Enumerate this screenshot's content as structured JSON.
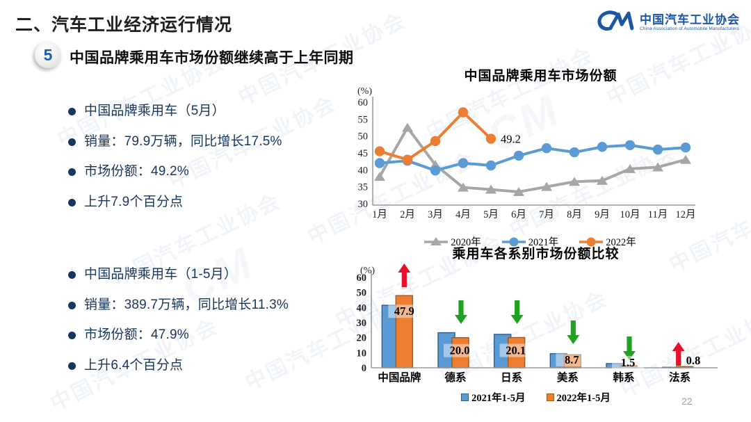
{
  "page": {
    "title": "二、汽车工业经济运行情况",
    "page_number": "22"
  },
  "logo": {
    "mark": "CM",
    "name_cn": "中国汽车工业协会",
    "name_en": "China Association of Automobile Manufacturers"
  },
  "section": {
    "badge": "5",
    "heading": "中国品牌乘用车市场份额继续高于上年同期"
  },
  "bullets": {
    "group1": [
      "中国品牌乘用车（5月）",
      "销量：79.9万辆，同比增长17.5%",
      "市场份额：49.2%",
      "上升7.9个百分点"
    ],
    "group2": [
      "中国品牌乘用车（1-5月）",
      "销量：389.7万辆，同比增长11.3%",
      "市场份额：47.9%",
      "上升6.4个百分点"
    ]
  },
  "watermark": {
    "text": "中国汽车工业协会"
  },
  "colors": {
    "navy_text": "#17365d",
    "blue_series": "#5b9bd5",
    "blue_border": "#2e5f8a",
    "orange_series": "#ed7d31",
    "orange_border": "#9c5a1d",
    "gray_series": "#a6a6a6",
    "up_arrow": "#e8112d",
    "down_arrow": "#1fa21f",
    "logo_blue": "#1c57a5"
  },
  "chart_data": [
    {
      "type": "line",
      "title": "中国品牌乘用车市场份额",
      "unit_label": "(%)",
      "categories": [
        "1月",
        "2月",
        "3月",
        "4月",
        "5月",
        "6月",
        "7月",
        "8月",
        "9月",
        "10月",
        "11月",
        "12月"
      ],
      "ylim": [
        30,
        60
      ],
      "ytick_step": 5,
      "grid": false,
      "legend_position": "bottom",
      "series": [
        {
          "name": "2020年",
          "color": "#a6a6a6",
          "marker": "triangle",
          "values": [
            38.0,
            52.5,
            41.5,
            34.8,
            34.2,
            33.5,
            35.0,
            36.5,
            36.8,
            40.3,
            40.8,
            43.0
          ]
        },
        {
          "name": "2021年",
          "color": "#5b9bd5",
          "marker": "circle",
          "values": [
            42.0,
            42.7,
            39.8,
            42.0,
            41.3,
            44.2,
            46.4,
            45.2,
            46.8,
            47.3,
            46.0,
            46.6
          ]
        },
        {
          "name": "2022年",
          "color": "#ed7d31",
          "marker": "circle",
          "values": [
            45.5,
            43.0,
            48.5,
            57.0,
            49.2
          ]
        }
      ],
      "annotation": {
        "text": "49.2",
        "series_index": 2,
        "point_index": 4
      }
    },
    {
      "type": "bar",
      "title": "乘用车各系别市场份额比较",
      "unit_label": "(%)",
      "categories": [
        "中国品牌",
        "德系",
        "日系",
        "美系",
        "韩系",
        "法系"
      ],
      "ylim": [
        0,
        60
      ],
      "ytick_step": 10,
      "grid": false,
      "legend_position": "bottom",
      "series": [
        {
          "name": "2021年1-5月",
          "color": "#5b9bd5",
          "border": "#2e5f8a",
          "values": [
            41.5,
            23.3,
            22.2,
            9.4,
            2.8,
            0.3
          ]
        },
        {
          "name": "2022年1-5月",
          "color": "#ed7d31",
          "border": "#9c5a1d",
          "values": [
            47.9,
            20.0,
            20.1,
            8.7,
            1.5,
            0.8
          ],
          "labels": [
            "47.9",
            "20.0",
            "20.1",
            "8.7",
            "1.5",
            "0.8"
          ]
        }
      ],
      "trend_arrows": [
        "up",
        "down",
        "down",
        "down",
        "down",
        "up"
      ]
    }
  ]
}
